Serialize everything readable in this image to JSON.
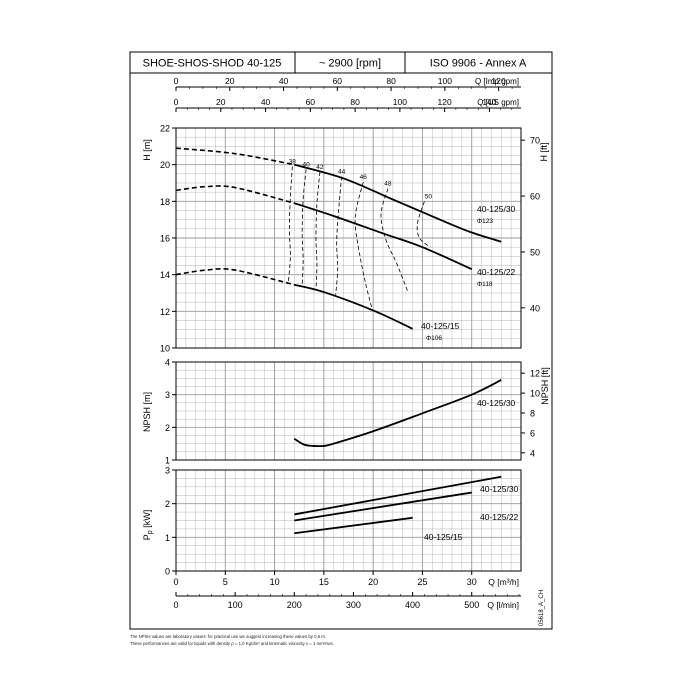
{
  "header": {
    "model": "SHOE-SHOS-SHOD 40-125",
    "speed": "~ 2900 [rpm]",
    "standard": "ISO 9906 - Annex A"
  },
  "drawing_code": "05618_A_CH",
  "footnotes": [
    "The NPSH values are laboratory values: for practical use we suggest increasing these values by 0,5 m.",
    "These performances are valid for liquids with density ρ = 1,0 Kg/dm³ and kinematic viscosity ν = 1 mm²/sec."
  ],
  "colors": {
    "grid": "#9a9a9a",
    "line": "#000000"
  },
  "chart_data": [
    {
      "type": "line",
      "panel": "head",
      "ylabel": "H [m]",
      "y2label": "H [ft]",
      "xlim": [
        0,
        35
      ],
      "ylim": [
        10,
        22
      ],
      "yticks": [
        10,
        12,
        14,
        16,
        18,
        20,
        22
      ],
      "y2ticks": [
        40,
        50,
        60,
        70
      ],
      "top_axes": [
        {
          "label": "Q [Imp gpm]",
          "ticks": [
            0,
            20,
            40,
            60,
            80,
            100,
            120
          ]
        },
        {
          "label": "Q [US gpm]",
          "ticks": [
            0,
            20,
            40,
            60,
            80,
            100,
            120,
            140
          ]
        }
      ],
      "efficiency_labels": [
        "38",
        "40",
        "42",
        "44",
        "46",
        "48",
        "50"
      ],
      "series": [
        {
          "name": "40-125/30",
          "diameter": "Φ123",
          "x": [
            0,
            6,
            12,
            17,
            22,
            27,
            30,
            33
          ],
          "y": [
            20.9,
            20.6,
            20.0,
            19.25,
            18.1,
            16.95,
            16.3,
            15.8
          ]
        },
        {
          "name": "40-125/22",
          "diameter": "Φ118",
          "x": [
            0,
            3,
            6,
            12,
            16,
            21,
            25,
            30
          ],
          "y": [
            18.6,
            18.8,
            18.75,
            17.9,
            17.2,
            16.25,
            15.5,
            14.3
          ]
        },
        {
          "name": "40-125/15",
          "diameter": "Φ106",
          "x": [
            0,
            3,
            6,
            12,
            15,
            20,
            24
          ],
          "y": [
            14.0,
            14.25,
            14.25,
            13.45,
            13.05,
            12.05,
            11.05
          ]
        }
      ]
    },
    {
      "type": "line",
      "panel": "npsh",
      "ylabel": "NPSH [m]",
      "y2label": "NPSH [ft]",
      "xlim": [
        0,
        35
      ],
      "ylim": [
        1,
        4
      ],
      "yticks": [
        1,
        2,
        3,
        4
      ],
      "y2ticks": [
        4,
        6,
        8,
        10,
        12
      ],
      "series": [
        {
          "name": "40-125/30",
          "x": [
            12,
            13,
            14,
            15,
            16,
            20,
            25,
            30,
            33
          ],
          "y": [
            1.65,
            1.47,
            1.43,
            1.43,
            1.5,
            1.88,
            2.43,
            3.0,
            3.45
          ]
        }
      ]
    },
    {
      "type": "line",
      "panel": "power",
      "ylabel": "Pp [kW]",
      "xlabel": "Q [m³/h]",
      "xlabel2": "Q [l/min]",
      "xlim": [
        0,
        35
      ],
      "ylim": [
        0,
        3
      ],
      "yticks": [
        0,
        1,
        2,
        3
      ],
      "xticks": [
        0,
        5,
        10,
        15,
        20,
        25,
        30
      ],
      "x2ticks": [
        0,
        100,
        200,
        300,
        400,
        500
      ],
      "series": [
        {
          "name": "40-125/30",
          "x": [
            12,
            33
          ],
          "y": [
            1.68,
            2.8
          ]
        },
        {
          "name": "40-125/22",
          "x": [
            12,
            30
          ],
          "y": [
            1.5,
            2.33
          ]
        },
        {
          "name": "40-125/15",
          "x": [
            12,
            24
          ],
          "y": [
            1.12,
            1.58
          ]
        }
      ]
    }
  ]
}
